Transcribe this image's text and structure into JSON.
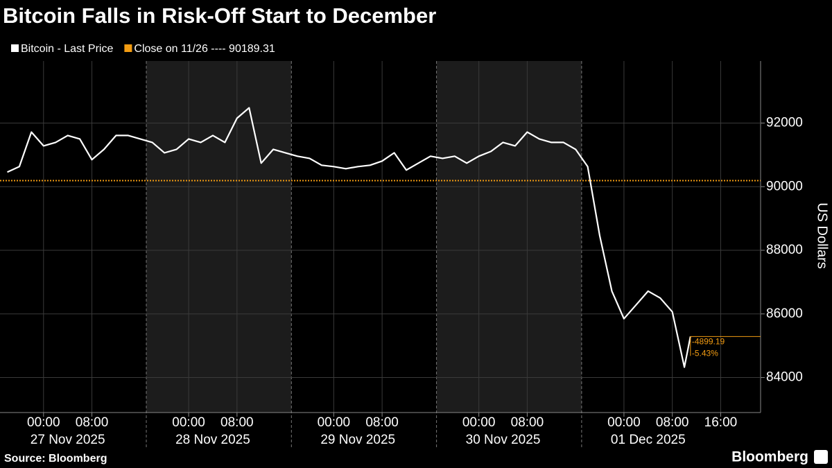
{
  "chart_data": {
    "type": "line",
    "title": "Bitcoin Falls in Risk-Off Start to December",
    "y_axis_label": "US Dollars",
    "source": "Source: Bloomberg",
    "brand": "Bloomberg",
    "series": [
      {
        "name": "Bitcoin - Last Price",
        "color": "#ffffff",
        "x": [
          "2025-11-26T18:00",
          "2025-11-26T20:00",
          "2025-11-26T22:00",
          "2025-11-27T00:00",
          "2025-11-27T02:00",
          "2025-11-27T04:00",
          "2025-11-27T06:00",
          "2025-11-27T08:00",
          "2025-11-27T10:00",
          "2025-11-27T12:00",
          "2025-11-27T14:00",
          "2025-11-27T16:00",
          "2025-11-27T18:00",
          "2025-11-27T20:00",
          "2025-11-27T22:00",
          "2025-11-28T00:00",
          "2025-11-28T02:00",
          "2025-11-28T04:00",
          "2025-11-28T06:00",
          "2025-11-28T08:00",
          "2025-11-28T10:00",
          "2025-11-28T12:00",
          "2025-11-28T14:00",
          "2025-11-28T16:00",
          "2025-11-28T18:00",
          "2025-11-28T20:00",
          "2025-11-28T22:00",
          "2025-11-29T00:00",
          "2025-11-29T02:00",
          "2025-11-29T04:00",
          "2025-11-29T06:00",
          "2025-11-29T08:00",
          "2025-11-29T10:00",
          "2025-11-29T12:00",
          "2025-11-29T14:00",
          "2025-11-29T16:00",
          "2025-11-29T18:00",
          "2025-11-29T20:00",
          "2025-11-29T22:00",
          "2025-11-30T00:00",
          "2025-11-30T02:00",
          "2025-11-30T04:00",
          "2025-11-30T06:00",
          "2025-11-30T08:00",
          "2025-11-30T10:00",
          "2025-11-30T12:00",
          "2025-11-30T14:00",
          "2025-11-30T16:00",
          "2025-11-30T18:00",
          "2025-11-30T20:00",
          "2025-11-30T22:00",
          "2025-12-01T00:00",
          "2025-12-01T02:00",
          "2025-12-01T04:00",
          "2025-12-01T06:00",
          "2025-12-01T08:00",
          "2025-12-01T10:00",
          "2025-12-01T11:00"
        ],
        "values": [
          90457,
          90630,
          91717,
          91283,
          91391,
          91609,
          91500,
          90848,
          91174,
          91609,
          91609,
          91500,
          91391,
          91065,
          91174,
          91500,
          91391,
          91609,
          91391,
          92152,
          92478,
          90739,
          91174,
          91065,
          90957,
          90891,
          90674,
          90630,
          90565,
          90630,
          90674,
          90804,
          91065,
          90522,
          90739,
          90957,
          90891,
          90957,
          90739,
          90957,
          91109,
          91391,
          91283,
          91717,
          91500,
          91391,
          91391,
          91174,
          90630,
          88457,
          86717,
          85848,
          86283,
          86717,
          86500,
          86065,
          84326,
          85290.12
        ]
      }
    ],
    "reference_line": {
      "name": "Close on 11/26 ---- 90189.31",
      "value": 90189.31,
      "color": "#f39c12"
    },
    "annotations": [
      "-4899.19",
      "-5.43%"
    ],
    "annotation_color": "#f39c12",
    "xlim": [
      "2025-11-26T16:48",
      "2025-12-01T22:36"
    ],
    "xticks": [
      {
        "value": "2025-11-27T00:00",
        "label": "00:00"
      },
      {
        "value": "2025-11-27T08:00",
        "label": "08:00"
      },
      {
        "value": "2025-11-28T00:00",
        "label": "00:00"
      },
      {
        "value": "2025-11-28T08:00",
        "label": "08:00"
      },
      {
        "value": "2025-11-29T00:00",
        "label": "00:00"
      },
      {
        "value": "2025-11-29T08:00",
        "label": "08:00"
      },
      {
        "value": "2025-11-30T00:00",
        "label": "00:00"
      },
      {
        "value": "2025-11-30T08:00",
        "label": "08:00"
      },
      {
        "value": "2025-12-01T00:00",
        "label": "00:00"
      },
      {
        "value": "2025-12-01T08:00",
        "label": "08:00"
      },
      {
        "value": "2025-12-01T16:00",
        "label": "16:00"
      }
    ],
    "date_labels": [
      {
        "value": "2025-11-27T04:00",
        "label": "27 Nov 2025"
      },
      {
        "value": "2025-11-28T04:00",
        "label": "28 Nov 2025"
      },
      {
        "value": "2025-11-29T04:00",
        "label": "29 Nov 2025"
      },
      {
        "value": "2025-11-30T04:00",
        "label": "30 Nov 2025"
      },
      {
        "value": "2025-12-01T04:00",
        "label": "01 Dec 2025"
      }
    ],
    "date_separators": [
      "2025-11-27T17:00",
      "2025-11-28T17:00",
      "2025-11-29T17:00",
      "2025-11-30T17:00"
    ],
    "shaded_ranges": [
      [
        "2025-11-27T17:00",
        "2025-11-28T17:00"
      ],
      [
        "2025-11-29T17:00",
        "2025-11-30T17:00"
      ]
    ],
    "ylim": [
      82900,
      93950
    ],
    "yticks": [
      84000,
      86000,
      88000,
      90000,
      92000
    ],
    "grid": true
  }
}
